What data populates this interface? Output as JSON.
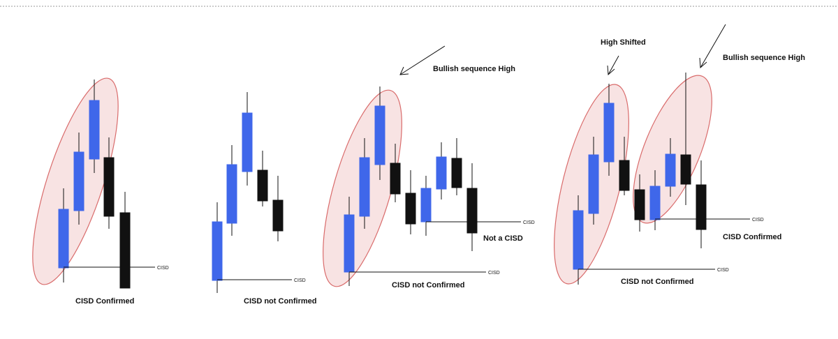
{
  "colors": {
    "bull": "#3f67ea",
    "bear": "#111111",
    "wick": "#111111",
    "highlight_fill": "#f8e3e3",
    "highlight_stroke": "#d96b6b",
    "divider": "#9a9a9a"
  },
  "panels": [
    {
      "level_label": "CISD",
      "caption": "CISD Confirmed",
      "candles": [
        "bull",
        "bull",
        "bull",
        "bear",
        "bear"
      ]
    },
    {
      "level_label": "CISD",
      "caption": "CISD not Confirmed",
      "candles": [
        "bull",
        "bull",
        "bull",
        "bear",
        "bear"
      ]
    },
    {
      "level_label": "CISD",
      "caption": "CISD not Confirmed",
      "annotation": "Bullish sequence High",
      "inner_level_label": "CISD",
      "inner_caption": "Not a CISD",
      "candles": [
        "bull",
        "bull",
        "bull",
        "bear",
        "bear",
        "bull",
        "bull",
        "bear",
        "bear"
      ]
    },
    {
      "level_label": "CISD",
      "caption": "CISD not Confirmed",
      "annotation_left": "High Shifted",
      "annotation_right": "Bullish sequence High",
      "inner_level_label": "CISD",
      "inner_caption": "CISD Confirmed",
      "candles": [
        "bull",
        "bull",
        "bull",
        "bear",
        "bear",
        "bull",
        "bull",
        "bear",
        "bear"
      ]
    }
  ]
}
